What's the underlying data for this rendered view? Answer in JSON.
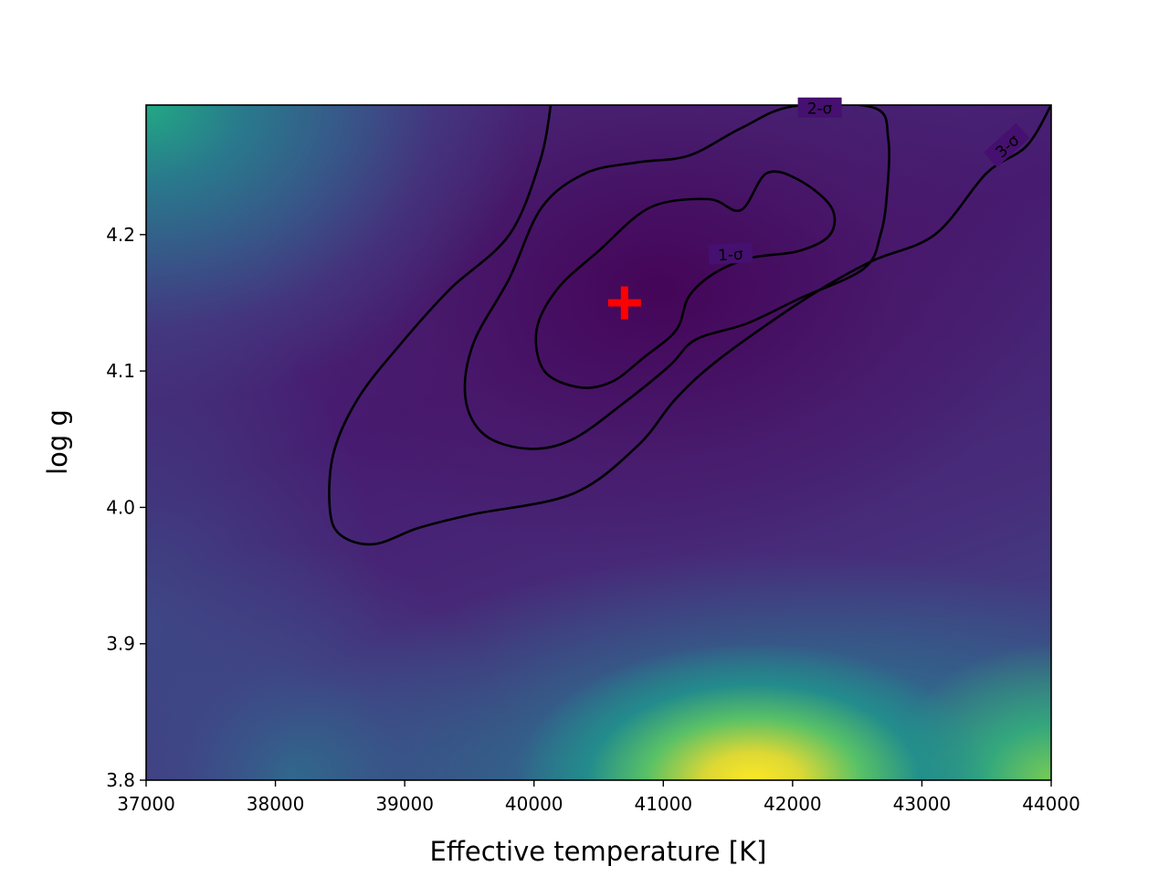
{
  "chart_data": {
    "type": "heatmap",
    "title": "",
    "xlabel": "Effective temperature [K]",
    "ylabel": "log g",
    "xlim": [
      37000,
      44000
    ],
    "ylim": [
      3.8,
      4.295
    ],
    "x_ticks": [
      37000,
      38000,
      39000,
      40000,
      41000,
      42000,
      43000,
      44000
    ],
    "x_tick_labels": [
      "37000",
      "38000",
      "39000",
      "40000",
      "41000",
      "42000",
      "43000",
      "44000"
    ],
    "y_ticks": [
      3.8,
      3.9,
      4.0,
      4.1,
      4.2
    ],
    "y_tick_labels": [
      "3.8",
      "3.9",
      "4.0",
      "4.1",
      "4.2"
    ],
    "grid": false,
    "colormap": "viridis",
    "best_fit": {
      "x": 40700,
      "y": 4.15,
      "marker": "plus",
      "color": "#ff0000"
    },
    "contours": [
      {
        "label": "1-σ",
        "points": [
          [
            40350,
            4.088
          ],
          [
            40080,
            4.1
          ],
          [
            40020,
            4.13
          ],
          [
            40180,
            4.16
          ],
          [
            40500,
            4.188
          ],
          [
            40900,
            4.22
          ],
          [
            41350,
            4.226
          ],
          [
            41600,
            4.218
          ],
          [
            41800,
            4.245
          ],
          [
            42050,
            4.24
          ],
          [
            42300,
            4.22
          ],
          [
            42290,
            4.2
          ],
          [
            42050,
            4.188
          ],
          [
            41680,
            4.183
          ],
          [
            41400,
            4.172
          ],
          [
            41200,
            4.155
          ],
          [
            41100,
            4.13
          ],
          [
            40850,
            4.11
          ],
          [
            40600,
            4.092
          ],
          [
            40350,
            4.088
          ]
        ]
      },
      {
        "label": "2-σ",
        "points": [
          [
            39960,
            4.043
          ],
          [
            39620,
            4.053
          ],
          [
            39470,
            4.08
          ],
          [
            39530,
            4.12
          ],
          [
            39810,
            4.168
          ],
          [
            40060,
            4.22
          ],
          [
            40400,
            4.245
          ],
          [
            40800,
            4.253
          ],
          [
            41200,
            4.258
          ],
          [
            41600,
            4.278
          ],
          [
            42000,
            4.294
          ],
          [
            42630,
            4.293
          ],
          [
            42740,
            4.27
          ],
          [
            42730,
            4.23
          ],
          [
            42680,
            4.2
          ],
          [
            42550,
            4.175
          ],
          [
            42050,
            4.153
          ],
          [
            41650,
            4.135
          ],
          [
            41250,
            4.123
          ],
          [
            41050,
            4.104
          ],
          [
            40700,
            4.077
          ],
          [
            40300,
            4.05
          ],
          [
            39960,
            4.043
          ]
        ]
      },
      {
        "label": "3-σ",
        "points": [
          [
            38760,
            3.973
          ],
          [
            38500,
            3.98
          ],
          [
            38420,
            4.0
          ],
          [
            38450,
            4.04
          ],
          [
            38640,
            4.08
          ],
          [
            38970,
            4.12
          ],
          [
            39350,
            4.16
          ],
          [
            39810,
            4.2
          ],
          [
            40050,
            4.255
          ],
          [
            40130,
            4.295
          ]
        ],
        "points_b": [
          [
            44000,
            4.295
          ],
          [
            43810,
            4.265
          ],
          [
            43500,
            4.245
          ],
          [
            43100,
            4.2
          ],
          [
            42600,
            4.18
          ],
          [
            42100,
            4.153
          ],
          [
            41450,
            4.11
          ],
          [
            41100,
            4.08
          ],
          [
            40800,
            4.045
          ],
          [
            40300,
            4.01
          ],
          [
            39530,
            3.995
          ],
          [
            39110,
            3.985
          ],
          [
            38760,
            3.973
          ]
        ]
      }
    ]
  }
}
